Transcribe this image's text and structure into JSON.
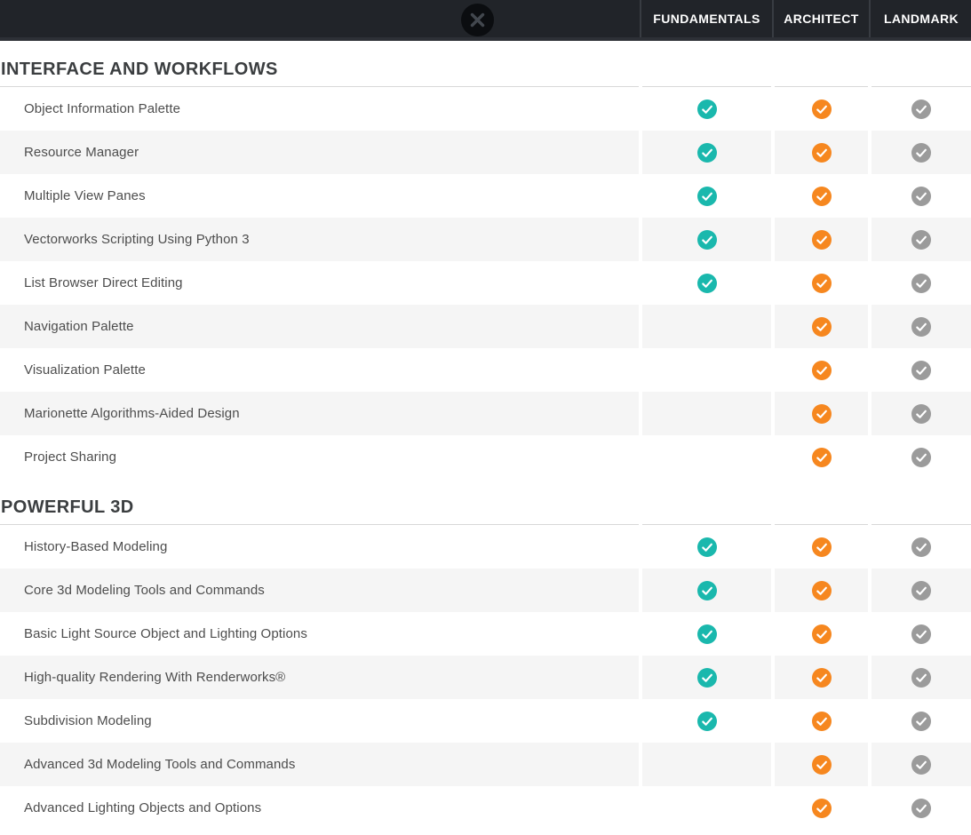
{
  "header": {
    "close_icon": "close-x",
    "columns": [
      "FUNDAMENTALS",
      "ARCHITECT",
      "LANDMARK"
    ]
  },
  "colors": {
    "topbar_bg": "#212429",
    "fundamentals_check": "#1ab8ad",
    "architect_check": "#f6871f",
    "landmark_check": "#9b9b9b",
    "alt_row_bg": "#f5f5f5"
  },
  "sections": [
    {
      "title": "INTERFACE AND WORKFLOWS",
      "rows": [
        {
          "feature": "Object Information Palette",
          "checks": [
            true,
            true,
            true
          ]
        },
        {
          "feature": "Resource Manager",
          "checks": [
            true,
            true,
            true
          ]
        },
        {
          "feature": "Multiple View Panes",
          "checks": [
            true,
            true,
            true
          ]
        },
        {
          "feature": "Vectorworks Scripting Using Python 3",
          "checks": [
            true,
            true,
            true
          ]
        },
        {
          "feature": "List Browser Direct Editing",
          "checks": [
            true,
            true,
            true
          ]
        },
        {
          "feature": "Navigation Palette",
          "checks": [
            false,
            true,
            true
          ]
        },
        {
          "feature": "Visualization Palette",
          "checks": [
            false,
            true,
            true
          ]
        },
        {
          "feature": "Marionette Algorithms-Aided Design",
          "checks": [
            false,
            true,
            true
          ]
        },
        {
          "feature": "Project Sharing",
          "checks": [
            false,
            true,
            true
          ]
        }
      ]
    },
    {
      "title": "POWERFUL 3D",
      "rows": [
        {
          "feature": "History-Based Modeling",
          "checks": [
            true,
            true,
            true
          ]
        },
        {
          "feature": "Core 3d Modeling Tools and Commands",
          "checks": [
            true,
            true,
            true
          ]
        },
        {
          "feature": "Basic Light Source Object and Lighting Options",
          "checks": [
            true,
            true,
            true
          ]
        },
        {
          "feature": "High-quality Rendering With Renderworks®",
          "checks": [
            true,
            true,
            true
          ]
        },
        {
          "feature": "Subdivision Modeling",
          "checks": [
            true,
            true,
            true
          ]
        },
        {
          "feature": "Advanced 3d Modeling Tools and Commands",
          "checks": [
            false,
            true,
            true
          ]
        },
        {
          "feature": "Advanced Lighting Objects and Options",
          "checks": [
            false,
            true,
            true
          ]
        }
      ]
    }
  ]
}
